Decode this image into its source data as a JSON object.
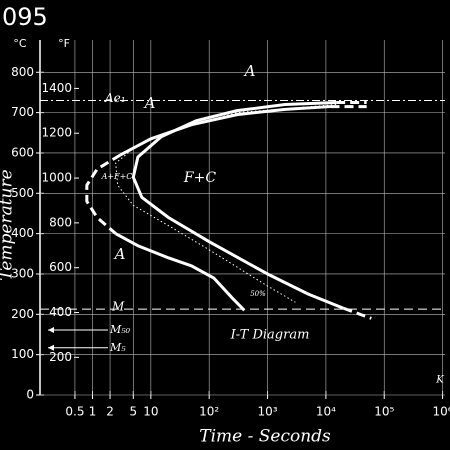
{
  "chart_data": {
    "type": "line",
    "title": "095",
    "xlabel": "Time - Seconds",
    "ylabel": "Temperature",
    "yunit": "°C",
    "y2unit": "°F",
    "log_x": true,
    "grid": true,
    "xlim": [
      0.126,
      1100000
    ],
    "xticks": [
      0.5,
      1,
      2,
      5,
      10,
      {
        "value": 100,
        "label": "10²"
      },
      {
        "value": 1000,
        "label": "10³"
      },
      {
        "value": 10000,
        "label": "10⁴"
      },
      {
        "value": 100000,
        "label": "10⁵"
      },
      {
        "value": 1000000,
        "label": "10⁶"
      }
    ],
    "ylim": [
      0,
      880
    ],
    "yticks": [
      0,
      100,
      200,
      300,
      400,
      500,
      600,
      700,
      800
    ],
    "y2lim": [
      32,
      1616
    ],
    "y2ticks": [
      200,
      400,
      600,
      800,
      1000,
      1200,
      1400
    ],
    "series": [
      {
        "color": "#ffffff",
        "style": "solid",
        "x": [
          12000,
          2000,
          300,
          50,
          10,
          3
        ],
        "values": [
          715,
          708,
          695,
          670,
          635,
          595
        ]
      },
      {
        "color": "#ffffff",
        "style": "dashed",
        "x": [
          3,
          1.2,
          0.8,
          0.8,
          1.2,
          2.5
        ],
        "values": [
          595,
          560,
          520,
          480,
          440,
          400
        ]
      },
      {
        "color": "#ffffff",
        "style": "solid",
        "x": [
          2.5,
          6,
          20,
          50,
          120,
          250,
          400
        ],
        "values": [
          400,
          370,
          340,
          320,
          290,
          240,
          210
        ]
      },
      {
        "color": "#ffffff",
        "style": "dashed",
        "x": [
          12000,
          50000
        ],
        "values": [
          715,
          715
        ]
      },
      {
        "color": "#ffffff",
        "style": "solid",
        "x": [
          15000,
          2000,
          300,
          60,
          15,
          6,
          5,
          7,
          20,
          100,
          1000,
          5000,
          20000
        ],
        "values": [
          725,
          720,
          705,
          680,
          640,
          590,
          540,
          490,
          440,
          380,
          300,
          250,
          215
        ]
      },
      {
        "color": "#ffffff",
        "style": "dashed",
        "x": [
          15000,
          50000
        ],
        "values": [
          725,
          725
        ]
      },
      {
        "color": "#ffffff",
        "style": "dashed",
        "x": [
          20000,
          60000
        ],
        "values": [
          215,
          190
        ]
      },
      {
        "color": "#ffffff",
        "style": "dotted",
        "x": [
          15000,
          300,
          30,
          6,
          2.5,
          2.7,
          5,
          20,
          100,
          1000,
          3000
        ],
        "values": [
          720,
          700,
          660,
          620,
          575,
          520,
          470,
          420,
          360,
          270,
          230
        ]
      }
    ],
    "hlines": [
      {
        "label": "Ae₁",
        "value": 730,
        "style": "dashdot"
      },
      {
        "label": "M",
        "value": 213,
        "style": "dashed"
      }
    ],
    "arrows": [
      {
        "label": "M₅₀",
        "value": 161
      },
      {
        "label": "M₅",
        "value": 117
      }
    ],
    "annotations": [
      "A",
      "A",
      "A+F+C",
      "F+C",
      "A",
      "I-T Diagram",
      "50%",
      "K"
    ]
  }
}
